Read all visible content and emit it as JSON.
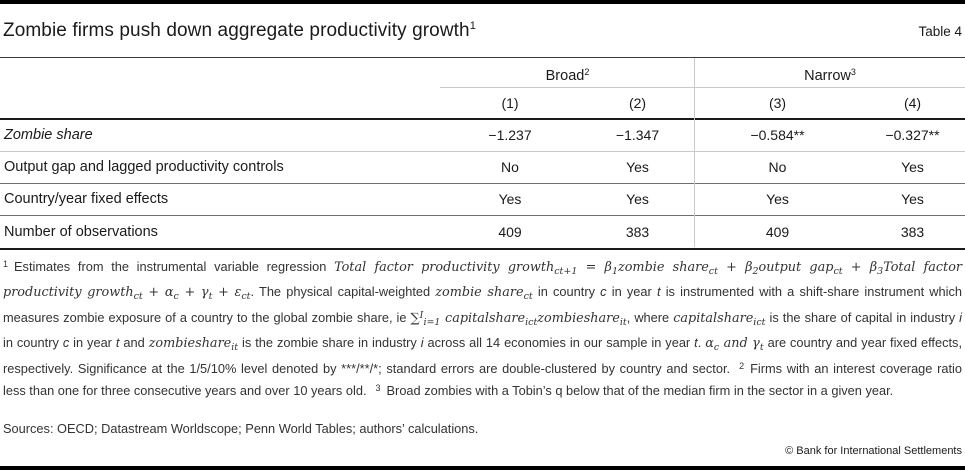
{
  "title": "Zombie firms push down aggregate productivity growth",
  "title_superscript": "1",
  "table_label": "Table 4",
  "table": {
    "col_groups": [
      {
        "label": "Broad",
        "superscript": "2"
      },
      {
        "label": "Narrow",
        "superscript": "3"
      }
    ],
    "column_headers": [
      "(1)",
      "(2)",
      "(3)",
      "(4)"
    ],
    "rows": [
      {
        "label": "Zombie share",
        "values": [
          "−1.237",
          "−1.347",
          "−0.584**",
          "−0.327**"
        ]
      },
      {
        "label": "Output gap and lagged productivity controls",
        "values": [
          "No",
          "Yes",
          "No",
          "Yes"
        ]
      },
      {
        "label": "Country/year fixed effects",
        "values": [
          "Yes",
          "Yes",
          "Yes",
          "Yes"
        ]
      },
      {
        "label": "Number of observations",
        "values": [
          "409",
          "383",
          "409",
          "383"
        ]
      }
    ]
  },
  "footnote": {
    "segments": [
      {
        "s": "sup",
        "t": "1"
      },
      {
        "s": "plain",
        "t": "Estimates from the instrumental variable regression "
      },
      {
        "s": "math",
        "t": "Total factor productivity growth"
      },
      {
        "s": "msub",
        "t": "ct+1"
      },
      {
        "s": "math",
        "t": " = β"
      },
      {
        "s": "msub",
        "t": "1"
      },
      {
        "s": "math",
        "t": "zombie share"
      },
      {
        "s": "msub",
        "t": "ct"
      },
      {
        "s": "math",
        "t": " + β"
      },
      {
        "s": "msub",
        "t": "2"
      },
      {
        "s": "math",
        "t": "output gap"
      },
      {
        "s": "msub",
        "t": "ct"
      },
      {
        "s": "math",
        "t": " + β"
      },
      {
        "s": "msub",
        "t": "3"
      },
      {
        "s": "math",
        "t": "Total factor productivity growth"
      },
      {
        "s": "msub",
        "t": "ct"
      },
      {
        "s": "math",
        "t": " + α"
      },
      {
        "s": "msub",
        "t": "c"
      },
      {
        "s": "math",
        "t": " + γ"
      },
      {
        "s": "msub",
        "t": "t"
      },
      {
        "s": "math",
        "t": " + ε"
      },
      {
        "s": "msub",
        "t": "ct"
      },
      {
        "s": "plain",
        "t": ". The physical capital-weighted "
      },
      {
        "s": "math",
        "t": "zombie share"
      },
      {
        "s": "msub",
        "t": "ct"
      },
      {
        "s": "plain",
        "t": " in country "
      },
      {
        "s": "it",
        "t": "c"
      },
      {
        "s": "plain",
        "t": " in year "
      },
      {
        "s": "it",
        "t": "t"
      },
      {
        "s": "plain",
        "t": " is instrumented with a shift-share instrument which measures zombie exposure of a country to the global zombie share, ie "
      },
      {
        "s": "math",
        "t": "∑"
      },
      {
        "s": "msup",
        "t": "I"
      },
      {
        "s": "msub",
        "t": "i=1"
      },
      {
        "s": "math",
        "t": " capitalshare"
      },
      {
        "s": "msub",
        "t": "ict"
      },
      {
        "s": "math",
        "t": "zombieshare"
      },
      {
        "s": "msub",
        "t": "it"
      },
      {
        "s": "plain",
        "t": ", where "
      },
      {
        "s": "math",
        "t": "capitalshare"
      },
      {
        "s": "msub",
        "t": "ict"
      },
      {
        "s": "plain",
        "t": " is the share of capital in industry "
      },
      {
        "s": "it",
        "t": "i"
      },
      {
        "s": "plain",
        "t": " in country "
      },
      {
        "s": "it",
        "t": "c"
      },
      {
        "s": "plain",
        "t": " in year "
      },
      {
        "s": "it",
        "t": "t"
      },
      {
        "s": "plain",
        "t": " and "
      },
      {
        "s": "math",
        "t": "zombieshare"
      },
      {
        "s": "msub",
        "t": "it"
      },
      {
        "s": "plain",
        "t": " is the zombie share in industry "
      },
      {
        "s": "it",
        "t": "i"
      },
      {
        "s": "plain",
        "t": " across all 14 economies in our sample in year "
      },
      {
        "s": "it",
        "t": "t"
      },
      {
        "s": "plain",
        "t": ". "
      },
      {
        "s": "math",
        "t": "α"
      },
      {
        "s": "msub",
        "t": "c"
      },
      {
        "s": "math",
        "t": " and "
      },
      {
        "s": "math",
        "t": "γ"
      },
      {
        "s": "msub",
        "t": "t"
      },
      {
        "s": "plain",
        "t": " are country and year fixed effects, respectively. Significance at the 1/5/10% level denoted by ***/**/*; standard errors are double-clustered by country and sector."
      },
      {
        "s": "sup",
        "t": "2"
      },
      {
        "s": "plain",
        "t": "Firms with an interest coverage ratio less than one for three consecutive years and over 10 years old."
      },
      {
        "s": "sup",
        "t": "3"
      },
      {
        "s": "plain",
        "t": "Broad zombies with a Tobin’s q below that of the median firm in the sector in a given year."
      }
    ]
  },
  "sources": "Sources: OECD; Datastream Worldscope; Penn World Tables; authors’ calculations.",
  "copyright": "© Bank for International Settlements"
}
